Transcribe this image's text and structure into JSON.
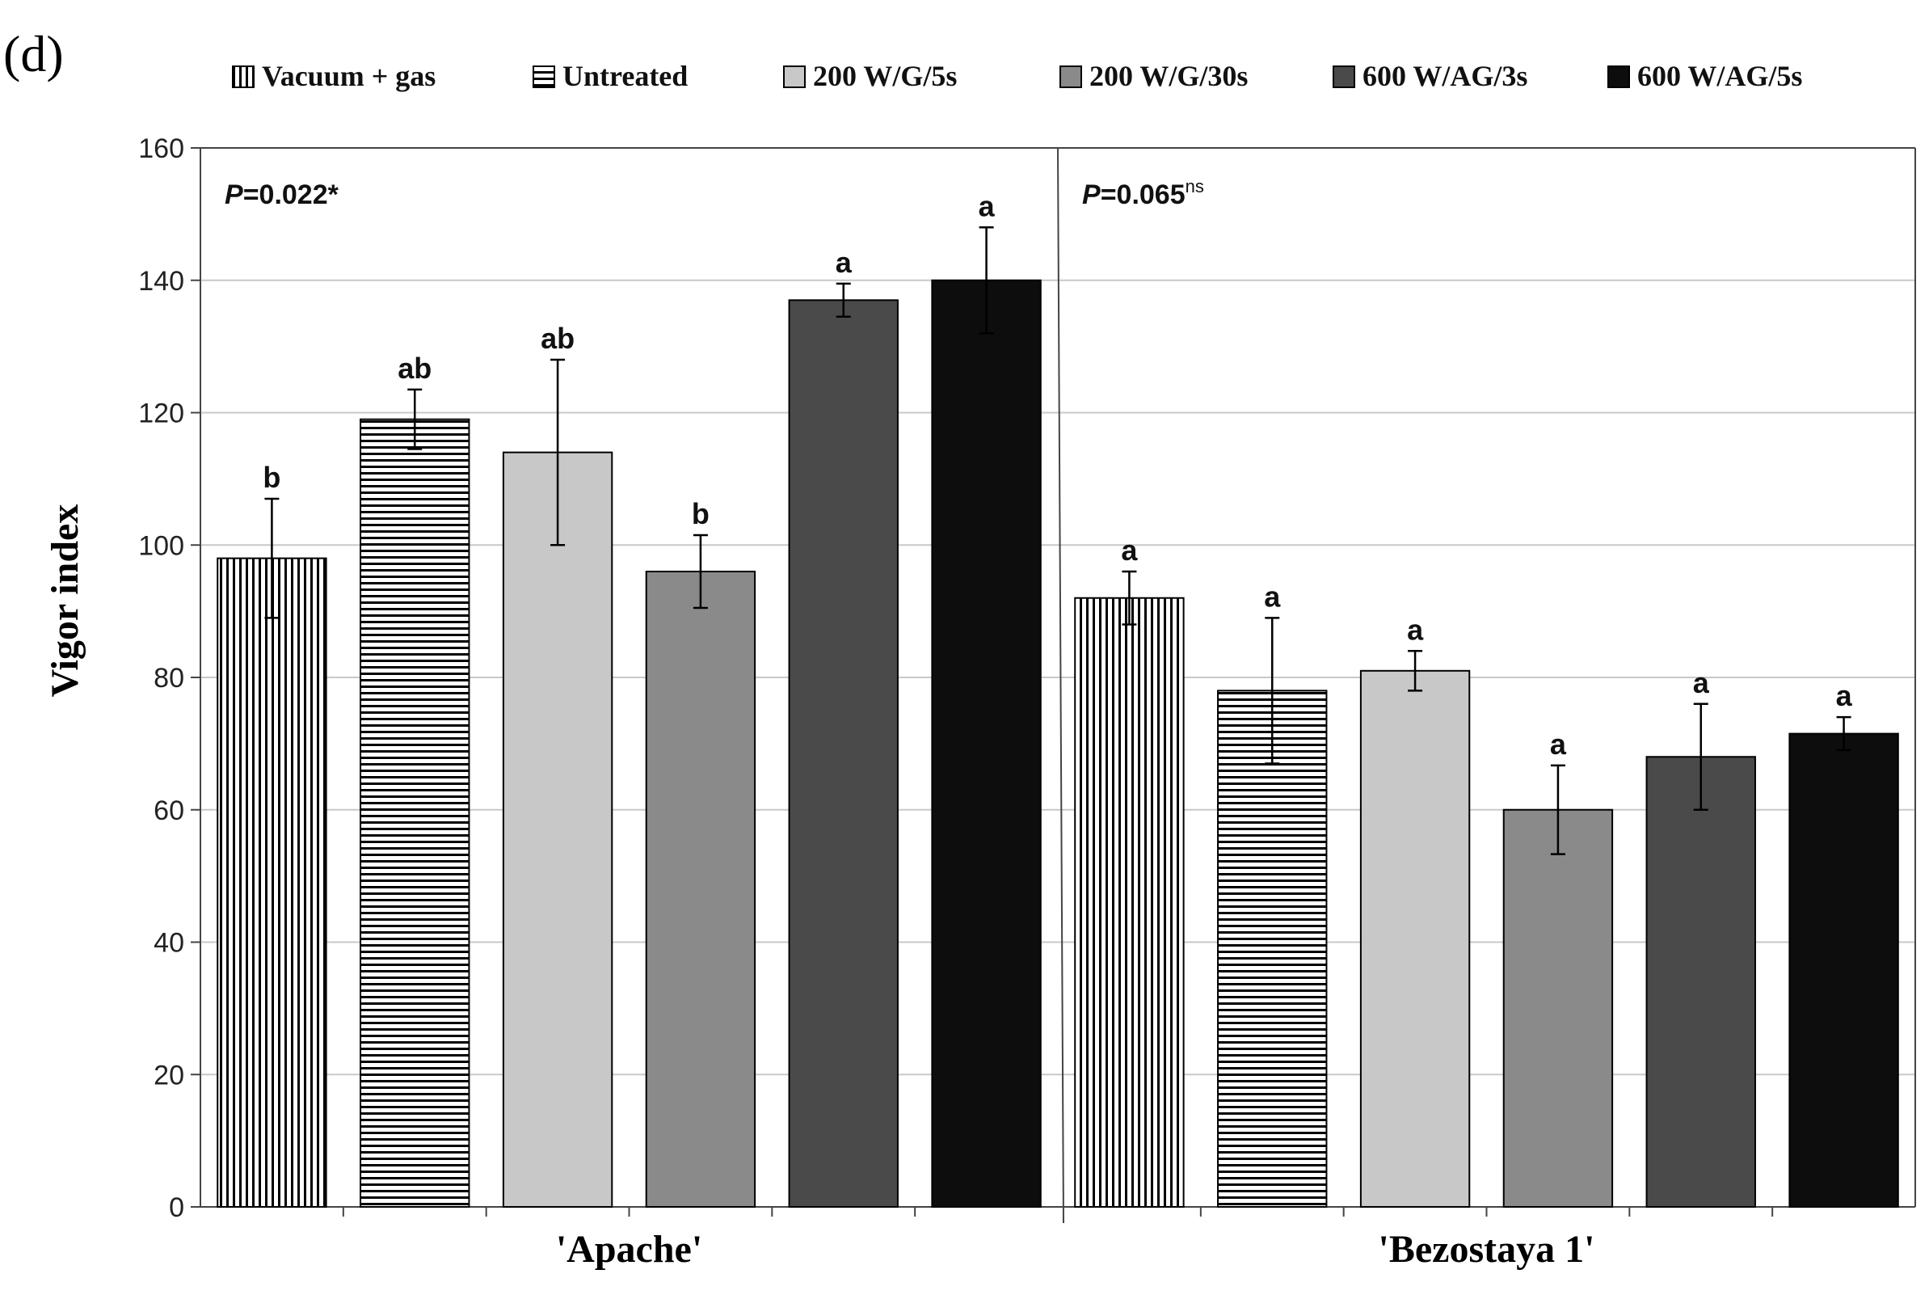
{
  "panel_label": "(d)",
  "colors": {
    "vacuum": "#ffffff",
    "untreated": "#ffffff",
    "g200_5s": "#c8c8c8",
    "g200_30s": "#8a8a8a",
    "ag600_3s": "#4a4a4a",
    "ag600_5s": "#0d0d0d",
    "grid": "#c8c8c8",
    "axis": "#444444"
  },
  "chart_data": {
    "type": "bar",
    "title": "",
    "xlabel": "",
    "ylabel": "Vigor index",
    "ylim": [
      0,
      160
    ],
    "yticks": [
      0,
      20,
      40,
      60,
      80,
      100,
      120,
      140,
      160
    ],
    "grid": true,
    "legend_position": "top",
    "categories": [
      "'Apache'",
      "'Bezostaya 1'"
    ],
    "p_values": [
      {
        "italic": "P",
        "text": "=0.022*",
        "sup": ""
      },
      {
        "italic": "P",
        "text": "=0.065",
        "sup": "ns"
      }
    ],
    "series": [
      {
        "name": "Vacuum + gas",
        "key": "vacuum",
        "pattern": "vertical",
        "values": [
          98,
          92
        ],
        "errors": [
          9,
          4
        ],
        "letters": [
          "b",
          "a"
        ]
      },
      {
        "name": "Untreated",
        "key": "untreated",
        "pattern": "horizontal",
        "values": [
          119,
          78
        ],
        "errors": [
          4.5,
          11
        ],
        "letters": [
          "ab",
          "a"
        ]
      },
      {
        "name": "200 W/G/5s",
        "key": "g200_5s",
        "pattern": "solid",
        "values": [
          114,
          81
        ],
        "errors": [
          14,
          3
        ],
        "letters": [
          "ab",
          "a"
        ]
      },
      {
        "name": "200 W/G/30s",
        "key": "g200_30s",
        "pattern": "solid",
        "values": [
          96,
          60
        ],
        "errors": [
          5.5,
          6.7
        ],
        "letters": [
          "b",
          "a"
        ]
      },
      {
        "name": "600 W/AG/3s",
        "key": "ag600_3s",
        "pattern": "solid",
        "values": [
          137,
          68
        ],
        "errors": [
          2.5,
          8
        ],
        "letters": [
          "a",
          "a"
        ]
      },
      {
        "name": "600 W/AG/5s",
        "key": "ag600_5s",
        "pattern": "solid",
        "values": [
          140,
          71.5
        ],
        "errors": [
          8,
          2.5
        ],
        "letters": [
          "a",
          "a"
        ]
      }
    ]
  }
}
